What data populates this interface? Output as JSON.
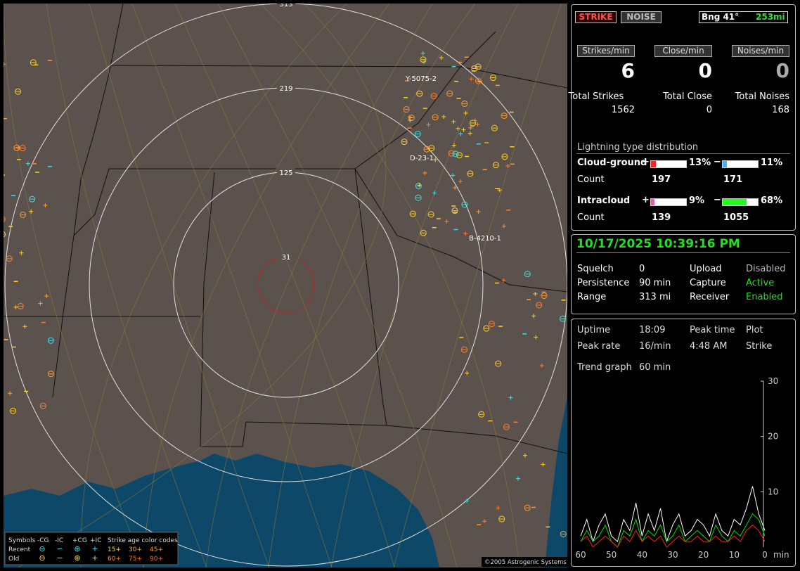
{
  "map": {
    "ring_labels": [
      "313",
      "219",
      "125",
      "31"
    ],
    "site_labels": [
      "Y-5075-2",
      "D-23-1",
      "B-4210-1"
    ],
    "legend": {
      "symbols_title": "Symbols",
      "symbol_headers": [
        "-CG",
        "-IC",
        "+CG",
        "+IC"
      ],
      "age_title": "Strike age color codes",
      "rows": [
        {
          "label": "Recent",
          "ages": [
            "15+",
            "30+",
            "45+"
          ]
        },
        {
          "label": "Old",
          "ages": [
            "60+",
            "75+",
            "90+"
          ]
        }
      ]
    },
    "copyright": "©2005 Astrogenic Systems"
  },
  "header": {
    "strike_button": "STRIKE",
    "noise_button": "NOISE",
    "bearing": "Bng 41°",
    "distance": "253mi"
  },
  "rates": [
    {
      "label": "Strikes/min",
      "value": "6"
    },
    {
      "label": "Close/min",
      "value": "0"
    },
    {
      "label": "Noises/min",
      "value": "0"
    }
  ],
  "totals": [
    {
      "label": "Total Strikes",
      "value": "1562"
    },
    {
      "label": "Total Close",
      "value": "0"
    },
    {
      "label": "Total Noises",
      "value": "168"
    }
  ],
  "distribution": {
    "title": "Lightning type distribution",
    "count_label": "Count",
    "rows": [
      {
        "label": "Cloud-ground",
        "pos_sign": "+",
        "pos": 13,
        "pos_label": "13%",
        "neg_sign": "−",
        "neg": 11,
        "neg_label": "11%",
        "pos_count": "197",
        "neg_count": "171"
      },
      {
        "label": "Intracloud",
        "pos_sign": "+",
        "pos": 9,
        "pos_label": "9%",
        "neg_sign": "−",
        "neg": 68,
        "neg_label": "68%",
        "pos_count": "139",
        "neg_count": "1055"
      }
    ]
  },
  "status": {
    "datetime": "10/17/2025 10:39:16 PM",
    "items": [
      [
        "Squelch",
        "0",
        "Upload",
        "Disabled"
      ],
      [
        "Persistence",
        "90 min",
        "Capture",
        "Active"
      ],
      [
        "Range",
        "313 mi",
        "Receiver",
        "Enabled"
      ]
    ]
  },
  "stats": {
    "items": [
      [
        "Uptime",
        "18:09",
        "Peak time",
        "Plot"
      ],
      [
        "Peak rate",
        "16/min",
        "4:48 AM",
        "Strike"
      ]
    ],
    "trend_label": "Trend graph",
    "trend_value": "60 min"
  },
  "trend": {
    "type": "line",
    "x": [
      60,
      58,
      56,
      54,
      52,
      50,
      48,
      46,
      44,
      42,
      40,
      38,
      36,
      34,
      32,
      30,
      28,
      26,
      24,
      22,
      20,
      18,
      16,
      14,
      12,
      10,
      8,
      6,
      4,
      2,
      0
    ],
    "xlim": [
      60,
      0
    ],
    "xticks": [
      60,
      50,
      40,
      30,
      20,
      10,
      0
    ],
    "x_unit": "min",
    "ylim": [
      0,
      30
    ],
    "yticks": [
      10,
      20,
      30
    ],
    "series": [
      {
        "color": "#ffffff",
        "values": [
          2,
          5,
          1,
          4,
          6,
          2,
          1,
          5,
          3,
          8,
          2,
          6,
          3,
          7,
          1,
          4,
          6,
          2,
          3,
          5,
          4,
          2,
          6,
          3,
          2,
          5,
          4,
          7,
          11,
          6,
          3
        ]
      },
      {
        "color": "#00dd00",
        "values": [
          1,
          3,
          1,
          2,
          4,
          1,
          0,
          3,
          2,
          5,
          1,
          3,
          2,
          4,
          1,
          2,
          4,
          1,
          2,
          3,
          2,
          1,
          4,
          2,
          1,
          3,
          2,
          4,
          6,
          5,
          2
        ]
      },
      {
        "color": "#ff2020",
        "values": [
          1,
          2,
          0,
          1,
          2,
          1,
          0,
          2,
          1,
          3,
          1,
          2,
          1,
          2,
          0,
          1,
          2,
          1,
          1,
          2,
          1,
          1,
          2,
          1,
          1,
          2,
          1,
          3,
          4,
          3,
          1
        ]
      }
    ]
  }
}
